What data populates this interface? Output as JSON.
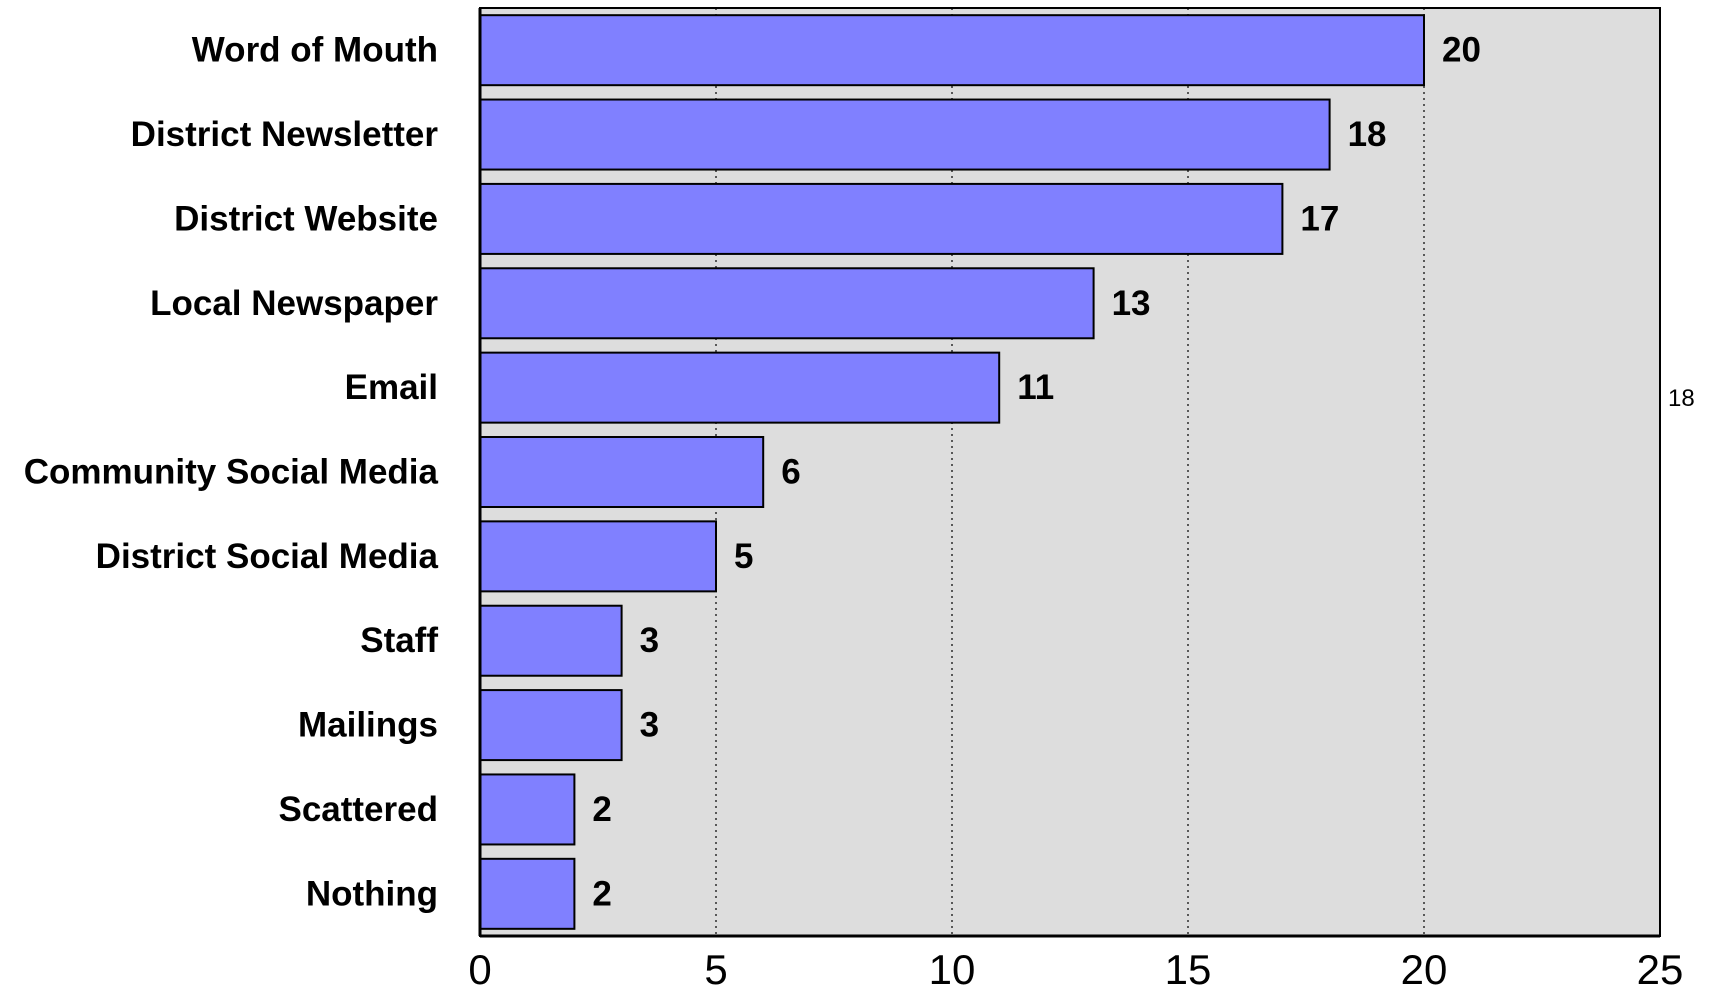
{
  "chart_data": {
    "type": "bar",
    "orientation": "horizontal",
    "categories": [
      "Word of Mouth",
      "District Newsletter",
      "District Website",
      "Local Newspaper",
      "Email",
      "Community Social Media",
      "District Social Media",
      "Staff",
      "Mailings",
      "Scattered",
      "Nothing"
    ],
    "values": [
      20,
      18,
      17,
      13,
      11,
      6,
      5,
      3,
      3,
      2,
      2
    ],
    "xlim": [
      0,
      25
    ],
    "xticks": [
      "0",
      "5",
      "10",
      "15",
      "20",
      "25"
    ],
    "title": "",
    "xlabel": "",
    "ylabel": "",
    "grid": "vertical dotted",
    "colors": {
      "bar": "#8080ff",
      "plot_background": "#dddddd",
      "bar_edge": "#000000"
    }
  },
  "side_note": "18"
}
